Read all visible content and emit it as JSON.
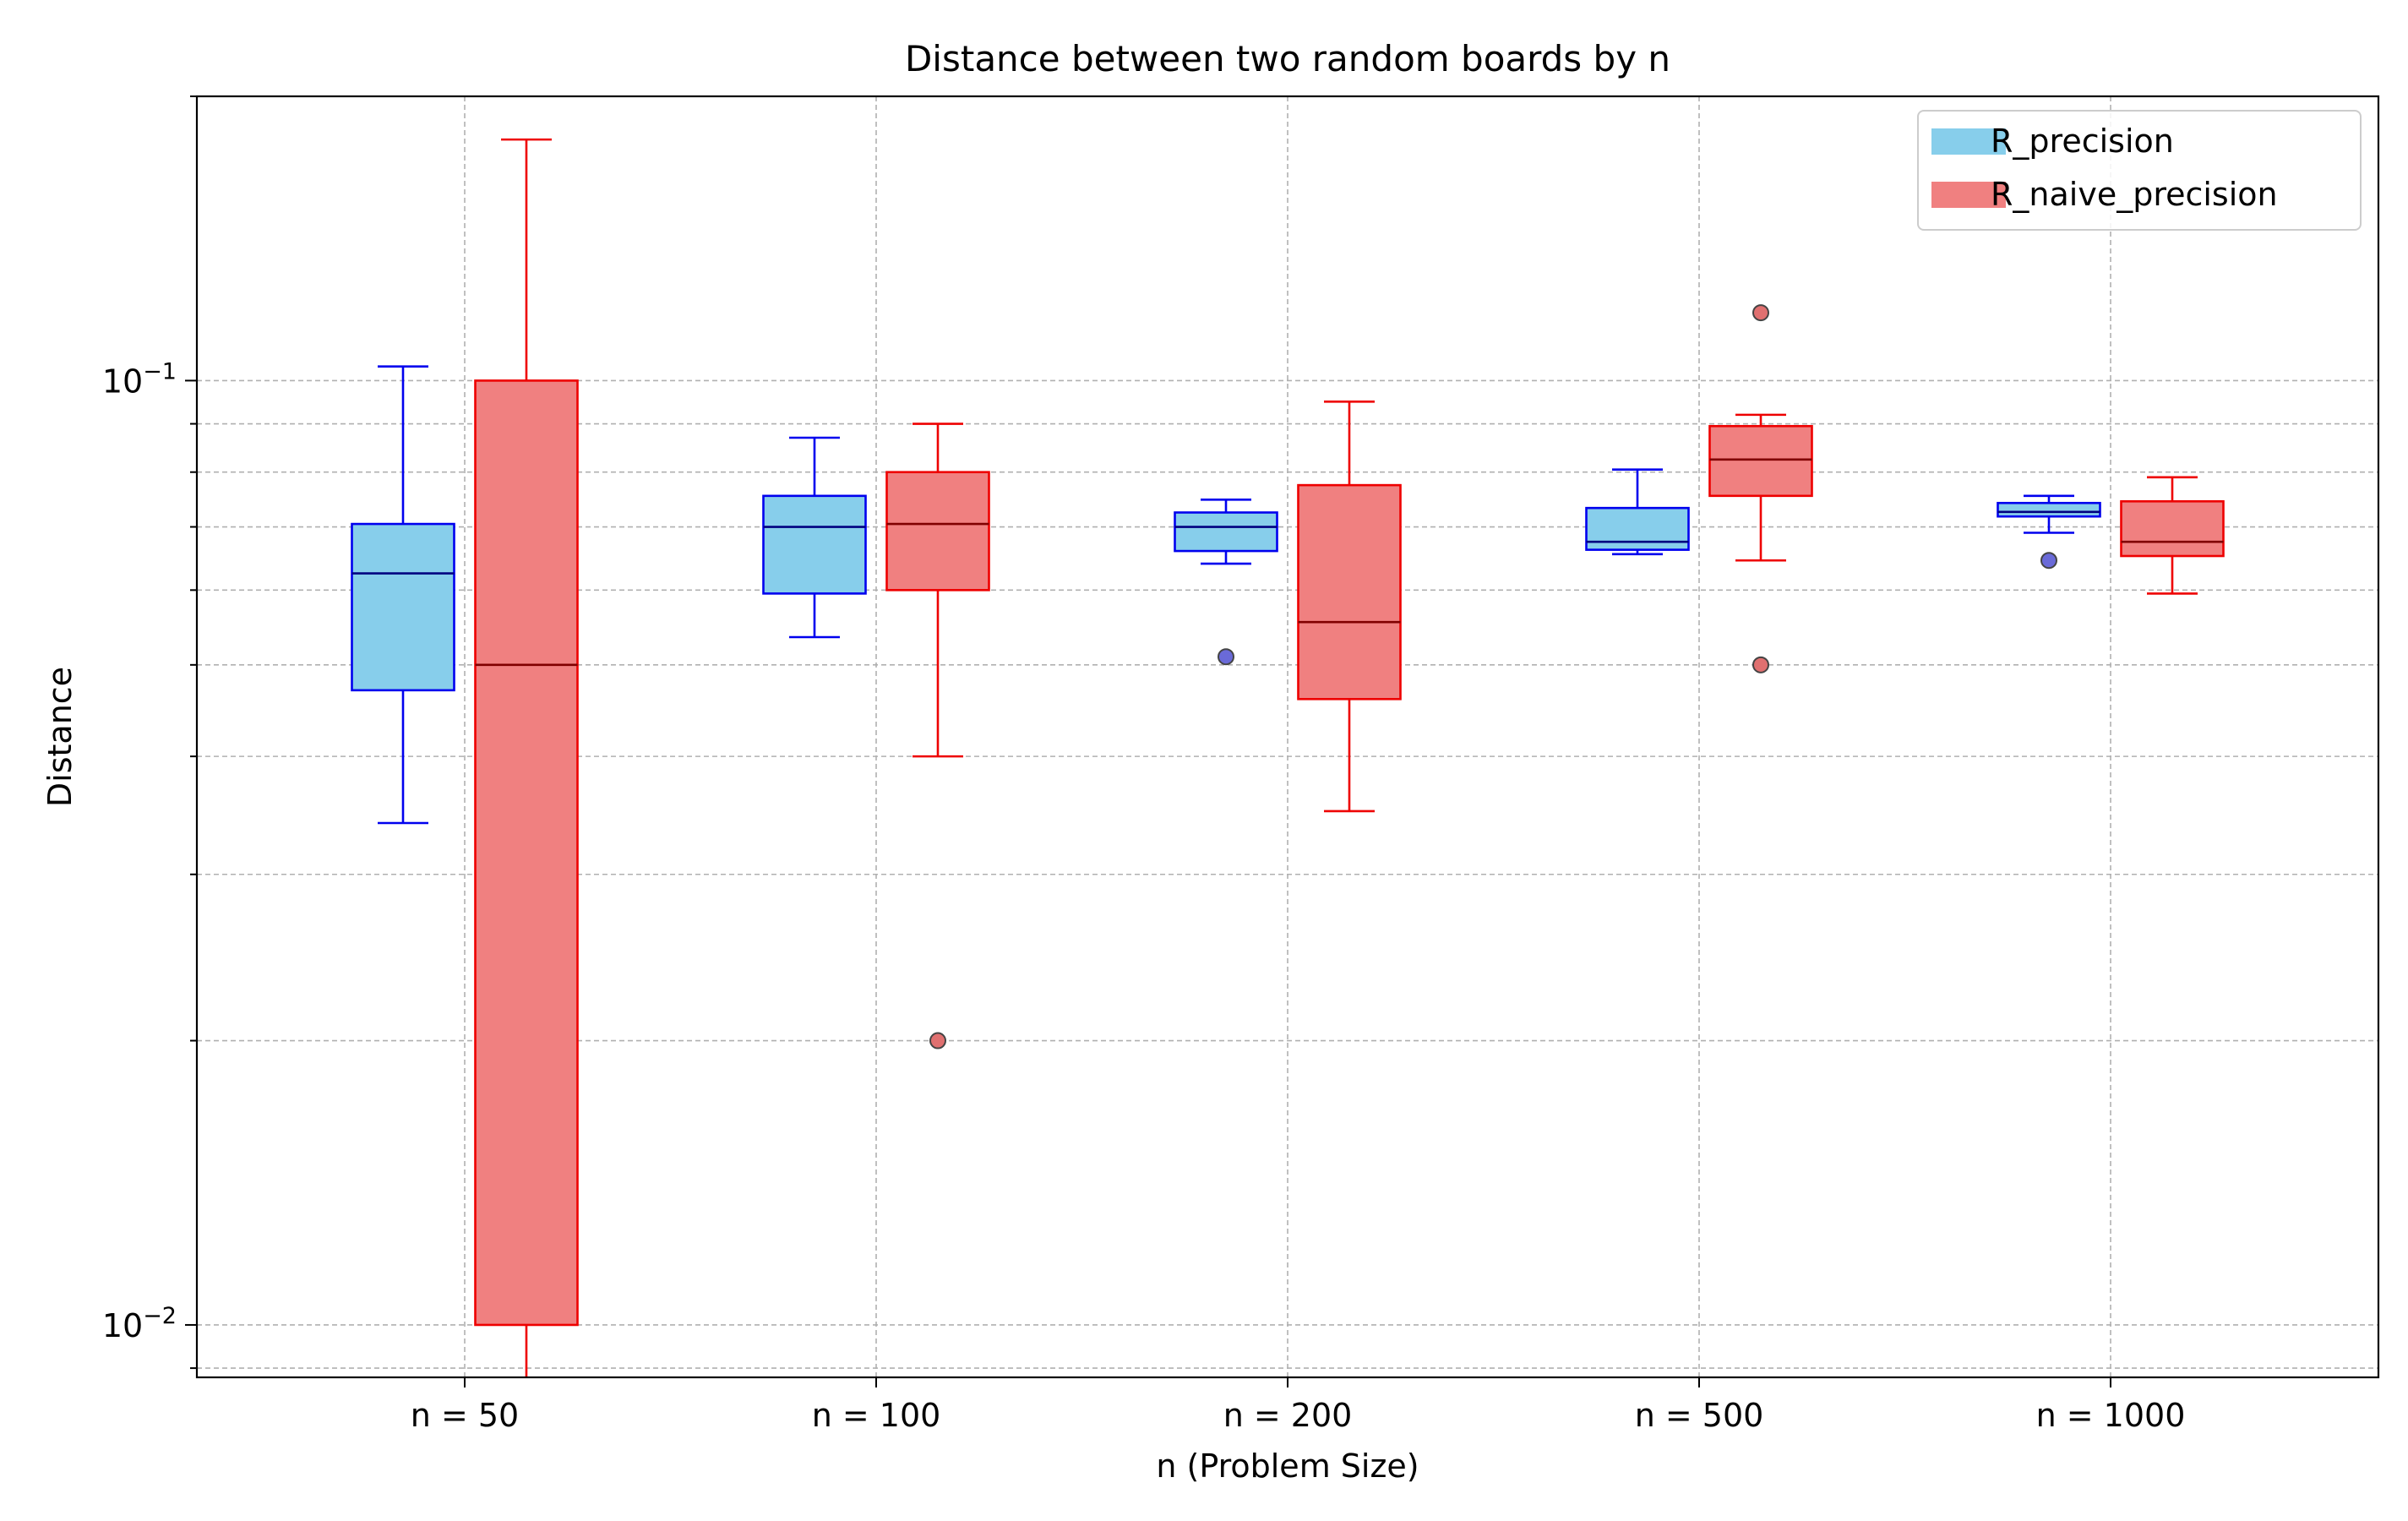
{
  "chart_data": {
    "type": "box",
    "title": "Distance between two random boards by n",
    "xlabel": "n (Problem Size)",
    "ylabel": "Distance",
    "yscale": "log",
    "ylim": [
      0.0088,
      0.2
    ],
    "grid": true,
    "legend_position": "top-right",
    "categories": [
      "n = 50",
      "n = 100",
      "n = 200",
      "n = 500",
      "n = 1000"
    ],
    "y_tick_labels": [
      {
        "value": 0.1,
        "base": "10",
        "exp": "−1"
      },
      {
        "value": 0.01,
        "base": "10",
        "exp": "−2"
      }
    ],
    "series": [
      {
        "name": "R_precision",
        "fill": "#87ceeb",
        "edge": "#0000ee",
        "median_color": "#000080",
        "outlier_fill": "#6a6ad8",
        "boxes": [
          {
            "whislo": 0.034,
            "q1": 0.047,
            "med": 0.0625,
            "q3": 0.0705,
            "whishi": 0.1035,
            "fliers": []
          },
          {
            "whislo": 0.0535,
            "q1": 0.0595,
            "med": 0.07,
            "q3": 0.0755,
            "whishi": 0.087,
            "fliers": []
          },
          {
            "whislo": 0.064,
            "q1": 0.066,
            "med": 0.07,
            "q3": 0.0725,
            "whishi": 0.0748,
            "fliers": [
              0.051
            ]
          },
          {
            "whislo": 0.0655,
            "q1": 0.0662,
            "med": 0.0675,
            "q3": 0.0733,
            "whishi": 0.0805,
            "fliers": []
          },
          {
            "whislo": 0.069,
            "q1": 0.0718,
            "med": 0.0726,
            "q3": 0.0742,
            "whishi": 0.0755,
            "fliers": [
              0.0645
            ]
          }
        ]
      },
      {
        "name": "R_naive_precision",
        "fill": "#f08080",
        "edge": "#ee0000",
        "median_color": "#800000",
        "outlier_fill": "#e07070",
        "boxes": [
          {
            "whislo": 0.0088,
            "q1": 0.01,
            "med": 0.05,
            "q3": 0.1,
            "whishi": 0.18,
            "fliers": []
          },
          {
            "whislo": 0.04,
            "q1": 0.06,
            "med": 0.0705,
            "q3": 0.08,
            "whishi": 0.09,
            "fliers": [
              0.02
            ]
          },
          {
            "whislo": 0.035,
            "q1": 0.046,
            "med": 0.0555,
            "q3": 0.0775,
            "whishi": 0.095,
            "fliers": []
          },
          {
            "whislo": 0.0645,
            "q1": 0.0755,
            "med": 0.0825,
            "q3": 0.0895,
            "whishi": 0.092,
            "fliers": [
              0.118,
              0.05
            ]
          },
          {
            "whislo": 0.0595,
            "q1": 0.0652,
            "med": 0.0675,
            "q3": 0.0745,
            "whishi": 0.079,
            "fliers": []
          }
        ]
      }
    ]
  }
}
